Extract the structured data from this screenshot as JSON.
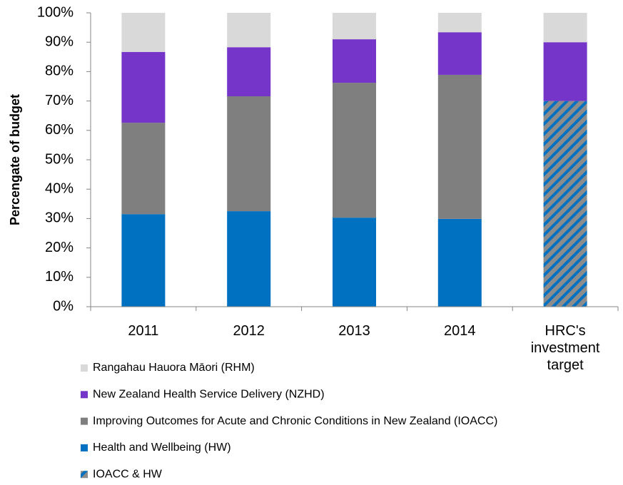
{
  "chart_data": {
    "type": "stacked_bar",
    "y_label": "Percengate of budget",
    "categories": [
      "2011",
      "2012",
      "2013",
      "2014",
      "HRC's investment target"
    ],
    "series": [
      {
        "name": "Rangahau Hauora Māori  (RHM)",
        "color": "#d9d9d9",
        "values": [
          13.3,
          11.7,
          9.0,
          6.6,
          10
        ]
      },
      {
        "name": "New Zealand Health Service Delivery (NZHD)",
        "color": "#7535c9",
        "values": [
          24.1,
          16.7,
          14.8,
          14.5,
          20
        ]
      },
      {
        "name": "Improving Outcomes for Acute and Chronic Conditions in New Zealand (IOACC)",
        "color": "#7f7f7f",
        "values": [
          31.1,
          39.1,
          45.9,
          49.0,
          null
        ]
      },
      {
        "name": "Health and Wellbeing (HW)",
        "color": "#0070c0",
        "values": [
          31.5,
          32.5,
          30.3,
          29.9,
          null
        ]
      },
      {
        "name": "IOACC & HW",
        "color": "#0070c0",
        "hatch": "#8c8c8c",
        "values": [
          null,
          null,
          null,
          null,
          70
        ]
      }
    ],
    "ylim": [
      0,
      100
    ],
    "yticks": [
      {
        "value": 0,
        "label": "0%"
      },
      {
        "value": 10,
        "label": "10%"
      },
      {
        "value": 20,
        "label": "20%"
      },
      {
        "value": 30,
        "label": "30%"
      },
      {
        "value": 40,
        "label": "40%"
      },
      {
        "value": 50,
        "label": "50%"
      },
      {
        "value": 60,
        "label": "60%"
      },
      {
        "value": 70,
        "label": "70%"
      },
      {
        "value": 80,
        "label": "80%"
      },
      {
        "value": 90,
        "label": "90%"
      },
      {
        "value": 100,
        "label": "100%"
      }
    ]
  }
}
